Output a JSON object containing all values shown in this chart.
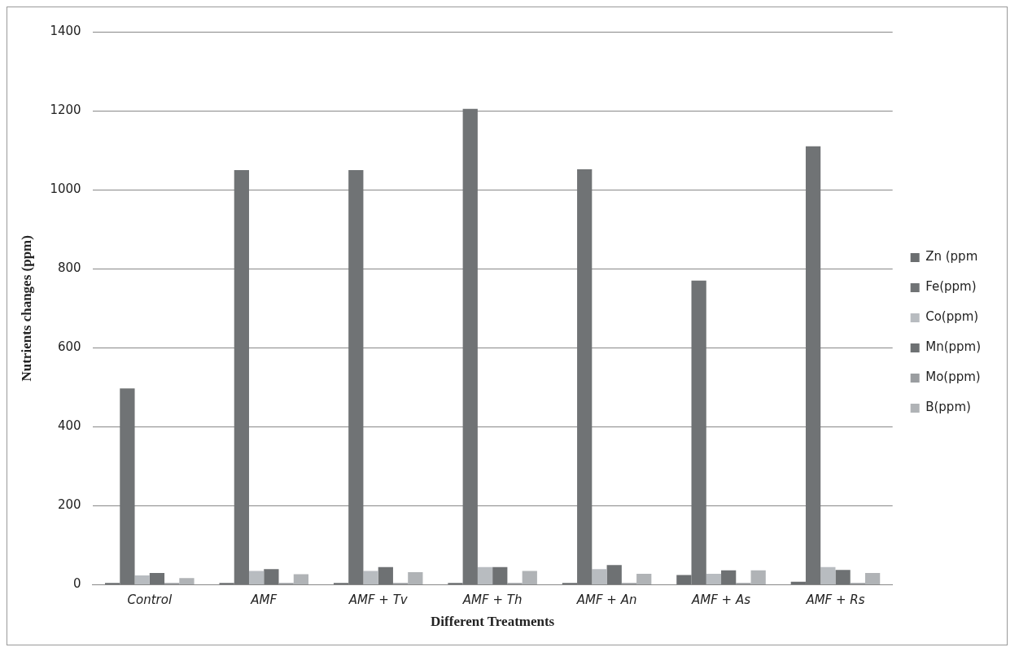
{
  "chart_data": {
    "type": "bar",
    "xlabel": "Different Treatments",
    "ylabel": "Nutrients changes (ppm)",
    "categories": [
      "Control",
      "AMF",
      "AMF + Tv",
      "AMF + Th",
      "AMF + An",
      "AMF + As",
      "AMF + Rs"
    ],
    "series": [
      {
        "name": "Zn (ppm",
        "color": "#6b6e70",
        "values": [
          5,
          5,
          5,
          5,
          5,
          25,
          8
        ]
      },
      {
        "name": "Fe(ppm)",
        "color": "#707375",
        "values": [
          497,
          1050,
          1050,
          1205,
          1052,
          770,
          1110
        ]
      },
      {
        "name": "Co(ppm)",
        "color": "#b8bcc0",
        "values": [
          24,
          35,
          35,
          45,
          40,
          28,
          45
        ]
      },
      {
        "name": "Mn(ppm)",
        "color": "#6e7173",
        "values": [
          30,
          40,
          45,
          45,
          50,
          37,
          38
        ]
      },
      {
        "name": "Mo(ppm)",
        "color": "#9a9da0",
        "values": [
          5,
          5,
          5,
          5,
          5,
          5,
          5
        ]
      },
      {
        "name": "B(ppm)",
        "color": "#b0b3b6",
        "values": [
          17,
          27,
          32,
          35,
          28,
          37,
          30
        ]
      }
    ],
    "ylim": [
      0,
      1400
    ],
    "yticks": [
      0,
      200,
      400,
      600,
      800,
      1000,
      1200,
      1400
    ],
    "grid": "y",
    "legend": "right"
  }
}
